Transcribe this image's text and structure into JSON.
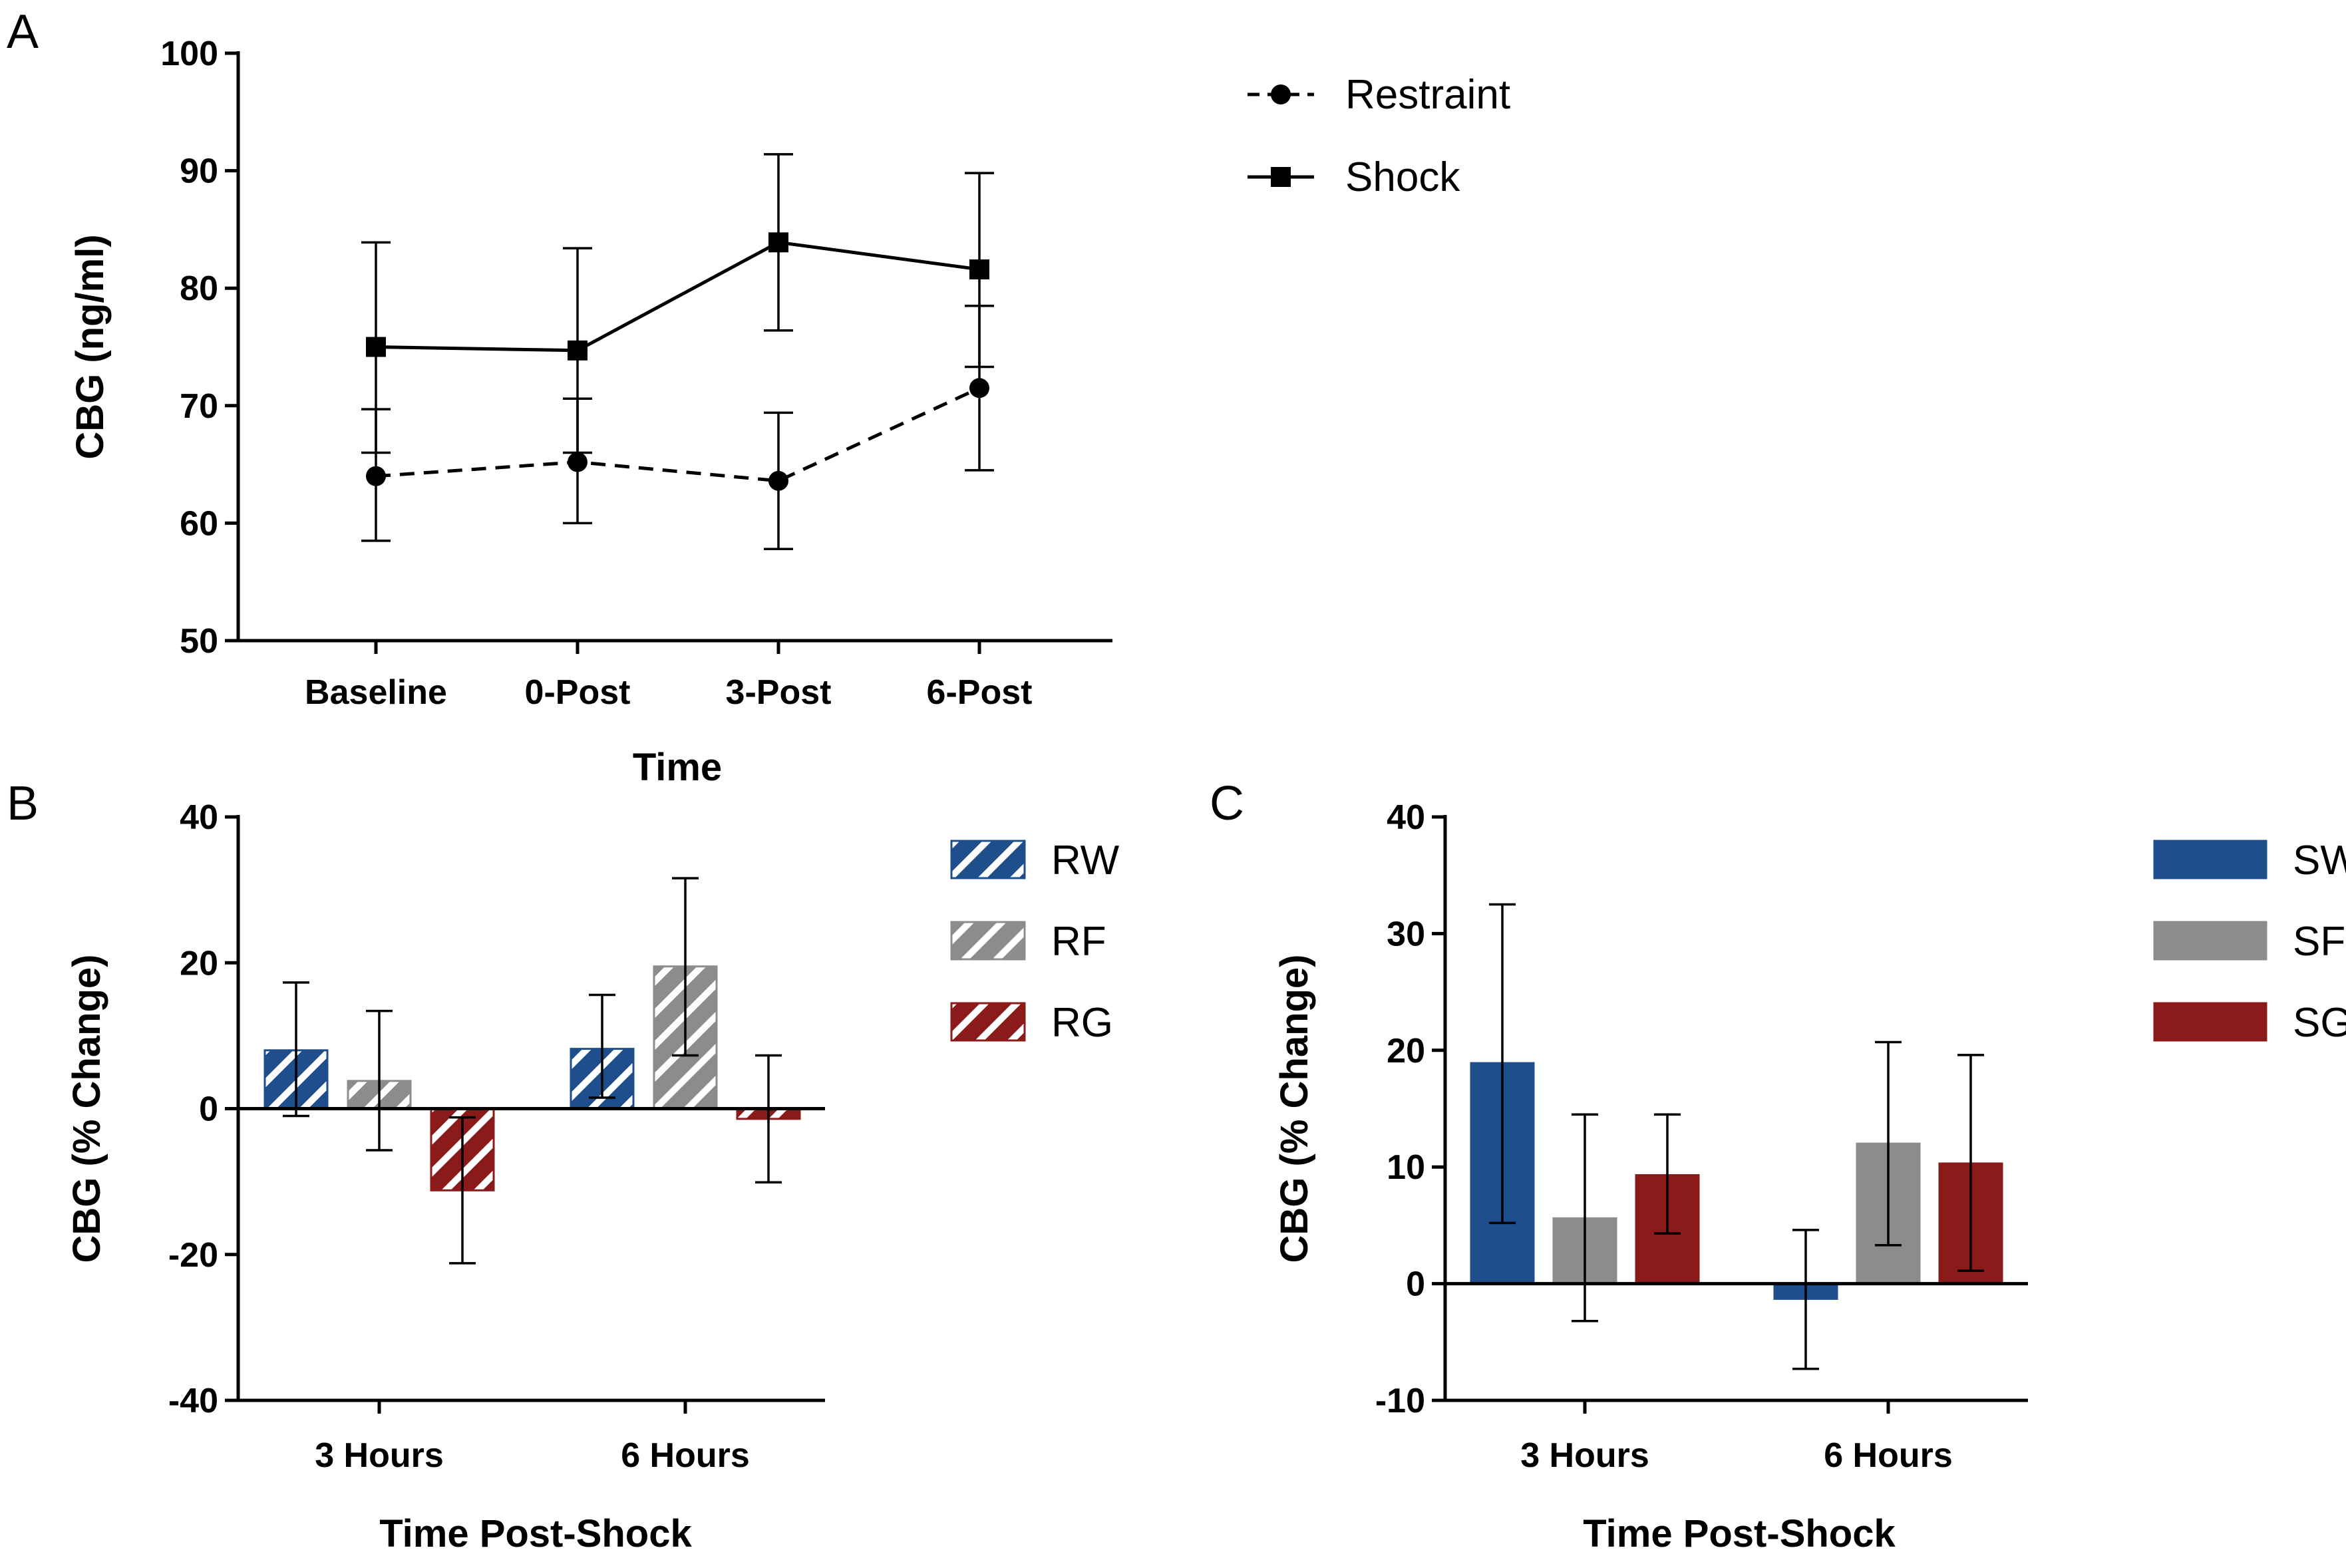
{
  "chart_data": [
    {
      "panel": "A",
      "type": "line",
      "ylabel": "CBG (ng/ml)",
      "xlabel": "Time",
      "categories": [
        "Baseline",
        "0-Post",
        "3-Post",
        "6-Post"
      ],
      "ylim": [
        50,
        100
      ],
      "yticks": [
        50,
        60,
        70,
        80,
        90,
        100
      ],
      "legend_position": "top-right",
      "series": [
        {
          "name": "Restraint",
          "marker": "circle",
          "dash": "dashed",
          "values": [
            64,
            65.2,
            63.6,
            71.5
          ],
          "err_low": [
            58.5,
            60,
            57.8,
            64.5
          ],
          "err_high": [
            69.7,
            70.6,
            69.4,
            78.5
          ]
        },
        {
          "name": "Shock",
          "marker": "square",
          "dash": "solid",
          "values": [
            75,
            74.7,
            83.9,
            81.6
          ],
          "err_low": [
            66,
            66,
            76.4,
            73.3
          ],
          "err_high": [
            83.9,
            83.4,
            91.4,
            89.8
          ]
        }
      ]
    },
    {
      "panel": "B",
      "type": "bar",
      "ylabel": "CBG (% Change)",
      "xlabel": "Time Post-Shock",
      "categories": [
        "3 Hours",
        "6 Hours"
      ],
      "ylim": [
        -40,
        40
      ],
      "yticks": [
        -40,
        -20,
        0,
        20,
        40
      ],
      "legend_position": "top-right",
      "pattern": "hatched",
      "series": [
        {
          "name": "RW",
          "color": "#1f4e8c",
          "values": [
            8,
            8.2
          ],
          "err_low": [
            -1,
            1.5
          ],
          "err_high": [
            17.3,
            15.6
          ]
        },
        {
          "name": "RF",
          "color": "#8c8c8c",
          "values": [
            3.8,
            19.5
          ],
          "err_low": [
            -5.7,
            7.3
          ],
          "err_high": [
            13.4,
            31.6
          ]
        },
        {
          "name": "RG",
          "color": "#8b1a1a",
          "values": [
            -11.2,
            -1.4
          ],
          "err_low": [
            -21.2,
            -10.1
          ],
          "err_high": [
            -1.2,
            7.3
          ]
        }
      ]
    },
    {
      "panel": "C",
      "type": "bar",
      "ylabel": "CBG (% Change)",
      "xlabel": "Time Post-Shock",
      "categories": [
        "3 Hours",
        "6 Hours"
      ],
      "ylim": [
        -10,
        40
      ],
      "yticks": [
        -10,
        0,
        10,
        20,
        30,
        40
      ],
      "legend_position": "top-right",
      "pattern": "solid",
      "series": [
        {
          "name": "SW",
          "color": "#1f4e8c",
          "values": [
            18.9,
            -1.3
          ],
          "err_low": [
            5.2,
            -7.3
          ],
          "err_high": [
            32.5,
            4.6
          ]
        },
        {
          "name": "SF",
          "color": "#8c8c8c",
          "values": [
            5.6,
            12
          ],
          "err_low": [
            -3.2,
            3.3
          ],
          "err_high": [
            14.5,
            20.7
          ]
        },
        {
          "name": "SG",
          "color": "#8b1a1a",
          "values": [
            9.3,
            10.3
          ],
          "err_low": [
            4.3,
            1.1
          ],
          "err_high": [
            14.5,
            19.6
          ]
        }
      ]
    }
  ]
}
